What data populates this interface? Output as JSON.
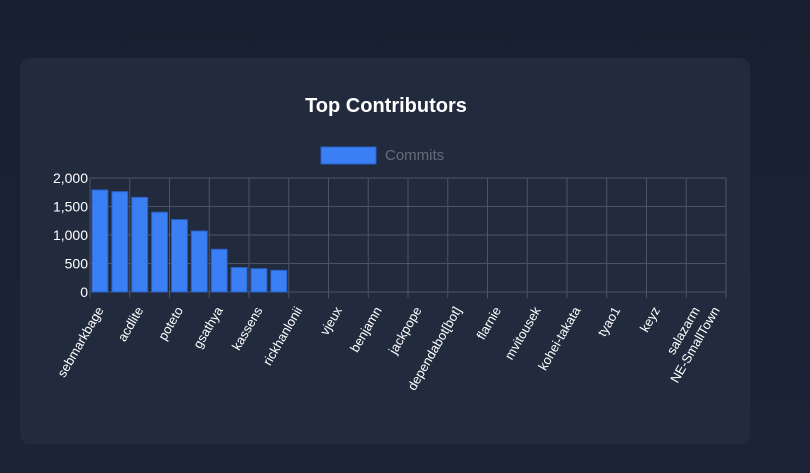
{
  "chart_data": {
    "type": "bar",
    "title": "Top Contributors",
    "series": [
      {
        "name": "Commits",
        "color": "#3b7ff5",
        "values": [
          1790,
          1760,
          1660,
          1400,
          1270,
          1070,
          750,
          430,
          410,
          380,
          0,
          0,
          0,
          0,
          0,
          0,
          0,
          0,
          0,
          0,
          0,
          0,
          0,
          0,
          0,
          0,
          0,
          0,
          0,
          0,
          0,
          0
        ]
      }
    ],
    "categories": [
      "sebmarkbage",
      "",
      "acdlite",
      "",
      "poteto",
      "",
      "gsathya",
      "",
      "kassens",
      "",
      "rickhanlonii",
      "",
      "vjeux",
      "",
      "benjamn",
      "",
      "jackpope",
      "",
      "dependabot[bot]",
      "",
      "flarnie",
      "",
      "mvitousek",
      "",
      "kohei-takata",
      "",
      "tyao1",
      "",
      "keyz",
      "",
      "salazarm",
      "NE-SmallTown"
    ],
    "ylim": [
      0,
      2000
    ],
    "yticks": [
      "0",
      "500",
      "1,000",
      "1,500",
      "2,000"
    ],
    "xlabel": "",
    "ylabel": "",
    "grid": true,
    "legend": "top"
  }
}
